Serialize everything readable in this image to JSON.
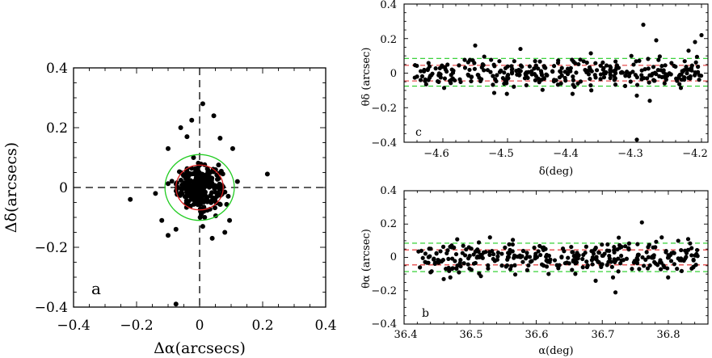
{
  "chart_data": [
    {
      "type": "scatter",
      "panel_label": "a",
      "xlabel": "Δα(arcsecs)",
      "ylabel": "Δδ(arcsecs)",
      "xlim": [
        -0.4,
        0.4
      ],
      "ylim": [
        -0.4,
        0.4
      ],
      "xticks": [
        "−0.4",
        "−0.2",
        "0",
        "0.2",
        "0.4"
      ],
      "yticks": [
        "−0.4",
        "−0.2",
        "0",
        "0.2",
        "0.4"
      ],
      "reference_lines": [
        {
          "orientation": "horizontal",
          "value": 0,
          "style": "dashed",
          "color": "#000000"
        },
        {
          "orientation": "vertical",
          "value": 0,
          "style": "dashed",
          "color": "#000000"
        }
      ],
      "circles": [
        {
          "radius": 0.11,
          "color": "#22cc22"
        },
        {
          "radius": 0.075,
          "color": "#dd2222"
        }
      ],
      "outliers": [
        [
          0.01,
          0.28
        ],
        [
          -0.075,
          -0.39
        ],
        [
          0.215,
          0.045
        ],
        [
          -0.22,
          -0.04
        ],
        [
          -0.025,
          0.225
        ],
        [
          0.045,
          0.24
        ],
        [
          -0.06,
          0.2
        ],
        [
          -0.04,
          0.17
        ],
        [
          0.065,
          0.165
        ],
        [
          0.105,
          0.13
        ],
        [
          -0.1,
          0.13
        ],
        [
          -0.14,
          -0.02
        ],
        [
          0.12,
          0.02
        ],
        [
          -0.12,
          -0.11
        ],
        [
          0.095,
          -0.11
        ],
        [
          -0.075,
          -0.14
        ],
        [
          0.08,
          -0.15
        ],
        [
          -0.1,
          -0.16
        ],
        [
          0.04,
          -0.17
        ],
        [
          0.01,
          -0.13
        ]
      ],
      "cluster": {
        "count": 300,
        "sigma": 0.035,
        "color": "#000000"
      }
    },
    {
      "type": "scatter",
      "panel_label": "c",
      "xlabel": "δ(deg)",
      "ylabel": "θδ (arcsec)",
      "xlim": [
        -4.66,
        -4.19
      ],
      "ylim": [
        -0.4,
        0.4
      ],
      "xticks": [
        "−4.6",
        "−4.5",
        "−4.4",
        "−4.3",
        "−4.2"
      ],
      "yticks": [
        "−0.4",
        "−0.2",
        "0",
        "0.2",
        "0.4"
      ],
      "reference_lines": [
        {
          "orientation": "horizontal",
          "value": 0.085,
          "style": "dashed",
          "color": "#22cc22"
        },
        {
          "orientation": "horizontal",
          "value": -0.075,
          "style": "dashed",
          "color": "#22cc22"
        },
        {
          "orientation": "horizontal",
          "value": 0.045,
          "style": "dashed",
          "color": "#dd2222"
        },
        {
          "orientation": "horizontal",
          "value": -0.045,
          "style": "dashed",
          "color": "#dd2222"
        }
      ],
      "outliers": [
        [
          -4.29,
          0.28
        ],
        [
          -4.3,
          -0.385
        ],
        [
          -4.2,
          0.22
        ],
        [
          -4.21,
          0.18
        ],
        [
          -4.27,
          0.19
        ],
        [
          -4.55,
          0.16
        ],
        [
          -4.28,
          -0.16
        ],
        [
          -4.3,
          -0.13
        ],
        [
          -4.48,
          0.14
        ],
        [
          -4.22,
          0.13
        ]
      ],
      "cluster": {
        "count": 330,
        "x_range": [
          -4.645,
          -4.2
        ],
        "sigma": 0.045,
        "color": "#000000"
      }
    },
    {
      "type": "scatter",
      "panel_label": "b",
      "xlabel": "α(deg)",
      "ylabel": "θα (arcsec)",
      "xlim": [
        36.4,
        36.86
      ],
      "ylim": [
        -0.4,
        0.4
      ],
      "xticks": [
        "36.4",
        "36.5",
        "36.6",
        "36.7",
        "36.8"
      ],
      "yticks": [
        "−0.4",
        "−0.2",
        "0",
        "0.2",
        "0.4"
      ],
      "reference_lines": [
        {
          "orientation": "horizontal",
          "value": 0.085,
          "style": "dashed",
          "color": "#22cc22"
        },
        {
          "orientation": "horizontal",
          "value": -0.085,
          "style": "dashed",
          "color": "#22cc22"
        },
        {
          "orientation": "horizontal",
          "value": 0.045,
          "style": "dashed",
          "color": "#dd2222"
        },
        {
          "orientation": "horizontal",
          "value": -0.045,
          "style": "dashed",
          "color": "#dd2222"
        }
      ],
      "outliers": [
        [
          36.76,
          0.21
        ],
        [
          36.72,
          -0.21
        ],
        [
          36.79,
          0.12
        ],
        [
          36.47,
          -0.12
        ],
        [
          36.46,
          -0.13
        ],
        [
          36.53,
          0.12
        ],
        [
          36.83,
          0.11
        ],
        [
          36.69,
          -0.14
        ]
      ],
      "cluster": {
        "count": 330,
        "x_range": [
          36.42,
          36.845
        ],
        "sigma": 0.045,
        "color": "#000000"
      }
    }
  ]
}
